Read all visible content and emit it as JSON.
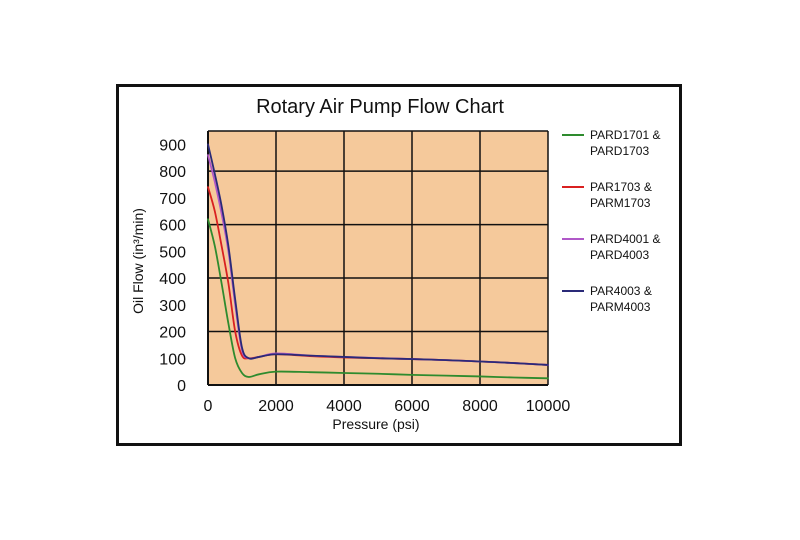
{
  "chart_data": {
    "type": "line",
    "title": "Rotary Air Pump Flow Chart",
    "xlabel": "Pressure (psi)",
    "ylabel": "Oil Flow (in³/min)",
    "xlim": [
      0,
      10000
    ],
    "ylim": [
      0,
      950
    ],
    "x_ticks": [
      0,
      2000,
      4000,
      6000,
      8000,
      10000
    ],
    "y_ticks": [
      0,
      100,
      200,
      300,
      400,
      500,
      600,
      700,
      800,
      900
    ],
    "grid": true,
    "legend_position": "right",
    "plot_background": "#F5C99B",
    "series": [
      {
        "name": "PARD1701 & PARD1703",
        "color": "#2E8B2E",
        "x": [
          0,
          200,
          400,
          600,
          800,
          1000,
          1200,
          1500,
          2000,
          3000,
          4000,
          5000,
          6000,
          7000,
          8000,
          9000,
          10000
        ],
        "y": [
          620,
          520,
          380,
          230,
          100,
          45,
          30,
          40,
          50,
          48,
          45,
          42,
          38,
          35,
          32,
          28,
          25
        ]
      },
      {
        "name": "PAR1703 & PARM1703",
        "color": "#D92020",
        "x": [
          0,
          200,
          400,
          600,
          800,
          1000,
          1200,
          1500,
          2000,
          3000,
          4000,
          5000,
          6000,
          7000,
          8000,
          9000,
          10000
        ],
        "y": [
          740,
          650,
          520,
          380,
          200,
          110,
          100,
          105,
          115,
          108,
          103,
          100,
          97,
          93,
          88,
          82,
          75
        ]
      },
      {
        "name": "PARD4001 & PARD4003",
        "color": "#B058C8",
        "x": [
          0,
          200,
          400,
          600,
          800,
          1000,
          1200,
          1500,
          2000,
          3000,
          4000,
          5000,
          6000,
          7000,
          8000,
          9000,
          10000
        ],
        "y": [
          860,
          760,
          640,
          500,
          300,
          130,
          100,
          105,
          118,
          110,
          105,
          101,
          97,
          93,
          88,
          82,
          75
        ]
      },
      {
        "name": "PAR4003 & PARM4003",
        "color": "#2A2A78",
        "x": [
          0,
          200,
          400,
          600,
          800,
          1000,
          1200,
          1500,
          2000,
          3000,
          4000,
          5000,
          6000,
          7000,
          8000,
          9000,
          10000
        ],
        "y": [
          900,
          790,
          670,
          520,
          320,
          140,
          100,
          105,
          115,
          110,
          105,
          100,
          97,
          93,
          88,
          82,
          75
        ]
      }
    ],
    "legend": [
      {
        "line1": "PARD1701 &",
        "line2": "PARD1703",
        "color": "#2E8B2E"
      },
      {
        "line1": "PAR1703 &",
        "line2": "PARM1703",
        "color": "#D92020"
      },
      {
        "line1": "PARD4001 &",
        "line2": "PARD4003",
        "color": "#B058C8"
      },
      {
        "line1": "PAR4003 &",
        "line2": "PARM4003",
        "color": "#2A2A78"
      }
    ]
  }
}
